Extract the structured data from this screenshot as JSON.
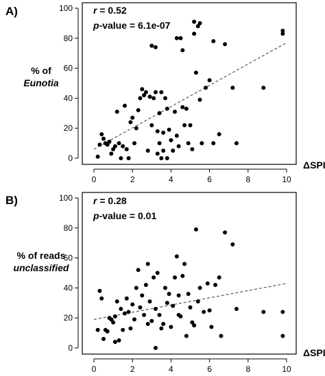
{
  "panels": [
    {
      "panel_label": "A)",
      "ylabel_line1": "% of",
      "ylabel_line2": "Eunotia",
      "xlabel": "ΔSPI",
      "stat_r_label": "r",
      "stat_r_value": " = 0.52",
      "stat_p_label": "p",
      "stat_p_value": "-value = 6.1e-07"
    },
    {
      "panel_label": "B)",
      "ylabel_line1": "% of reads",
      "ylabel_line2": "unclassified",
      "xlabel": "ΔSPI",
      "stat_r_label": "r",
      "stat_r_value": " = 0.28",
      "stat_p_label": "p",
      "stat_p_value": "-value = 0.01"
    }
  ],
  "chart_data": [
    {
      "type": "scatter",
      "title": "",
      "xlabel": "ΔSPI",
      "ylabel": "% of Eunotia",
      "xlim": [
        0,
        10
      ],
      "ylim": [
        0,
        100
      ],
      "xticks": [
        0,
        2,
        4,
        6,
        8,
        10
      ],
      "yticks": [
        0,
        20,
        40,
        60,
        80,
        100
      ],
      "grid": false,
      "annotations": [
        "r = 0.52",
        "p-value = 6.1e-07"
      ],
      "trendline": {
        "style": "dashed",
        "x": [
          0,
          10
        ],
        "y": [
          6,
          77
        ]
      },
      "points": [
        [
          0.2,
          1
        ],
        [
          0.3,
          9
        ],
        [
          0.4,
          16
        ],
        [
          0.5,
          13
        ],
        [
          0.6,
          10
        ],
        [
          0.7,
          9
        ],
        [
          0.8,
          11
        ],
        [
          0.9,
          3
        ],
        [
          1.0,
          6
        ],
        [
          1.1,
          8
        ],
        [
          1.2,
          31
        ],
        [
          1.3,
          10
        ],
        [
          1.4,
          0
        ],
        [
          1.5,
          8
        ],
        [
          1.6,
          35
        ],
        [
          1.7,
          6
        ],
        [
          1.8,
          0
        ],
        [
          1.9,
          24
        ],
        [
          2.0,
          27
        ],
        [
          2.1,
          10
        ],
        [
          2.2,
          20
        ],
        [
          2.3,
          32
        ],
        [
          2.4,
          40
        ],
        [
          2.5,
          46
        ],
        [
          2.6,
          42
        ],
        [
          2.7,
          44
        ],
        [
          2.8,
          5
        ],
        [
          2.9,
          41
        ],
        [
          3.0,
          22
        ],
        [
          3.0,
          75
        ],
        [
          3.1,
          40
        ],
        [
          3.2,
          44
        ],
        [
          3.3,
          18
        ],
        [
          3.3,
          3
        ],
        [
          3.4,
          30
        ],
        [
          3.4,
          10
        ],
        [
          3.5,
          0
        ],
        [
          3.5,
          44
        ],
        [
          3.6,
          5
        ],
        [
          3.6,
          17
        ],
        [
          3.7,
          40
        ],
        [
          3.8,
          33
        ],
        [
          3.8,
          0
        ],
        [
          3.9,
          19
        ],
        [
          4.0,
          12
        ],
        [
          4.1,
          5
        ],
        [
          4.2,
          31
        ],
        [
          4.3,
          15
        ],
        [
          4.4,
          8
        ],
        [
          4.5,
          80
        ],
        [
          4.6,
          72
        ],
        [
          4.6,
          34
        ],
        [
          4.7,
          22
        ],
        [
          4.8,
          33
        ],
        [
          4.9,
          10
        ],
        [
          5.0,
          22
        ],
        [
          5.1,
          6
        ],
        [
          5.2,
          91
        ],
        [
          5.3,
          57
        ],
        [
          5.4,
          88
        ],
        [
          5.5,
          39
        ],
        [
          5.6,
          10
        ],
        [
          5.8,
          47
        ],
        [
          6.0,
          52
        ],
        [
          6.2,
          10
        ],
        [
          6.5,
          16
        ],
        [
          6.8,
          76
        ],
        [
          7.2,
          47
        ],
        [
          7.4,
          10
        ],
        [
          8.8,
          47
        ],
        [
          9.8,
          83
        ],
        [
          9.8,
          85
        ],
        [
          4.3,
          80
        ],
        [
          5.2,
          83
        ],
        [
          6.2,
          78
        ],
        [
          5.5,
          90
        ],
        [
          3.2,
          74
        ]
      ]
    },
    {
      "type": "scatter",
      "title": "",
      "xlabel": "ΔSPI",
      "ylabel": "% of reads unclassified",
      "xlim": [
        0,
        10
      ],
      "ylim": [
        0,
        100
      ],
      "xticks": [
        0,
        2,
        4,
        6,
        8,
        10
      ],
      "yticks": [
        0,
        20,
        40,
        60,
        80,
        100
      ],
      "grid": false,
      "annotations": [
        "r = 0.28",
        "p-value = 0.01"
      ],
      "trendline": {
        "style": "dashed",
        "x": [
          0,
          10
        ],
        "y": [
          19,
          43
        ]
      },
      "points": [
        [
          0.2,
          12
        ],
        [
          0.3,
          38
        ],
        [
          0.4,
          33
        ],
        [
          0.5,
          6
        ],
        [
          0.6,
          12
        ],
        [
          0.7,
          11
        ],
        [
          0.8,
          20
        ],
        [
          0.9,
          19
        ],
        [
          1.0,
          17
        ],
        [
          1.1,
          21
        ],
        [
          1.2,
          31
        ],
        [
          1.3,
          5
        ],
        [
          1.4,
          26
        ],
        [
          1.5,
          12
        ],
        [
          1.6,
          23
        ],
        [
          1.7,
          33
        ],
        [
          1.8,
          24
        ],
        [
          1.9,
          13
        ],
        [
          2.0,
          29
        ],
        [
          2.1,
          19
        ],
        [
          2.2,
          40
        ],
        [
          2.3,
          52
        ],
        [
          2.4,
          27
        ],
        [
          2.5,
          35
        ],
        [
          2.6,
          22
        ],
        [
          2.7,
          42
        ],
        [
          2.8,
          56
        ],
        [
          2.9,
          31
        ],
        [
          3.0,
          18
        ],
        [
          3.1,
          47
        ],
        [
          3.2,
          26
        ],
        [
          3.3,
          50
        ],
        [
          3.4,
          22
        ],
        [
          3.5,
          13
        ],
        [
          3.6,
          16
        ],
        [
          3.7,
          40
        ],
        [
          3.8,
          30
        ],
        [
          3.9,
          36
        ],
        [
          4.0,
          14
        ],
        [
          4.1,
          28
        ],
        [
          4.2,
          47
        ],
        [
          4.3,
          61
        ],
        [
          4.4,
          35
        ],
        [
          4.5,
          21
        ],
        [
          4.6,
          48
        ],
        [
          4.7,
          56
        ],
        [
          4.8,
          8
        ],
        [
          4.9,
          36
        ],
        [
          5.0,
          27
        ],
        [
          5.1,
          17
        ],
        [
          5.2,
          15
        ],
        [
          5.3,
          79
        ],
        [
          5.4,
          31
        ],
        [
          5.5,
          40
        ],
        [
          5.7,
          24
        ],
        [
          5.9,
          43
        ],
        [
          6.0,
          25
        ],
        [
          6.1,
          14
        ],
        [
          6.3,
          42
        ],
        [
          6.5,
          47
        ],
        [
          6.8,
          77
        ],
        [
          7.2,
          69
        ],
        [
          7.4,
          26
        ],
        [
          8.8,
          24
        ],
        [
          9.8,
          24
        ],
        [
          9.8,
          8
        ],
        [
          3.2,
          0
        ],
        [
          1.1,
          4
        ],
        [
          6.6,
          8
        ],
        [
          2.8,
          16
        ],
        [
          4.4,
          22
        ],
        [
          0.9,
          19
        ]
      ]
    }
  ]
}
